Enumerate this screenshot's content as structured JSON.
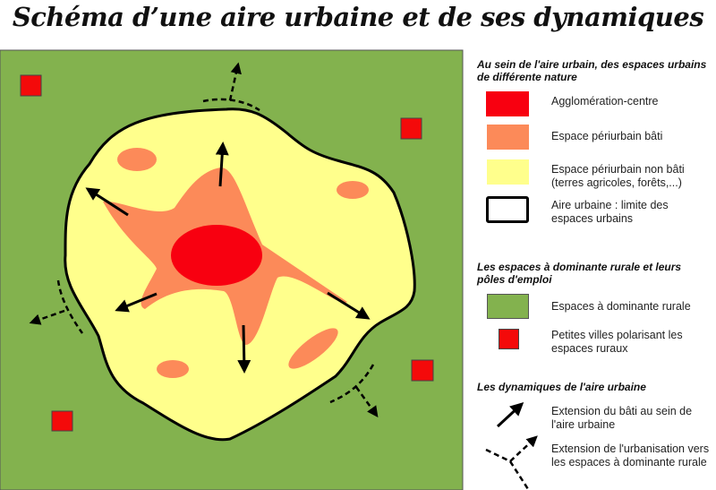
{
  "title": "Schéma d’une aire urbaine et de ses dynamiques",
  "colors": {
    "rural": "#83b24e",
    "periurbain_non_bati": "#ffff8c",
    "periurbain_bati": "#fc8a59",
    "agglomeration": "#f80010",
    "petites_villes": "#f40a0a"
  },
  "legend": {
    "section1": {
      "heading": "Au sein de l'aire urbain, des espaces urbains de différente nature",
      "items": [
        {
          "label": "Agglomération-centre"
        },
        {
          "label": "Espace périurbain bâti"
        },
        {
          "label": "Espace périurbain non bâti (terres agricoles, forêts,...)"
        },
        {
          "label": "Aire urbaine : limite des espaces urbains"
        }
      ]
    },
    "section2": {
      "heading": "Les espaces à dominante rurale et leurs pôles d'emploi",
      "items": [
        {
          "label": "Espaces à dominante rurale"
        },
        {
          "label": "Petites villes polarisant les espaces ruraux"
        }
      ]
    },
    "section3": {
      "heading": "Les dynamiques de l'aire urbaine",
      "items": [
        {
          "label": "Extension du bâti au sein de l'aire urbaine",
          "icon": "solid-arrow-icon"
        },
        {
          "label": "Extension de l'urbanisation vers les espaces à dominante rurale",
          "icon": "dashed-branch-arrow-icon"
        }
      ]
    }
  }
}
